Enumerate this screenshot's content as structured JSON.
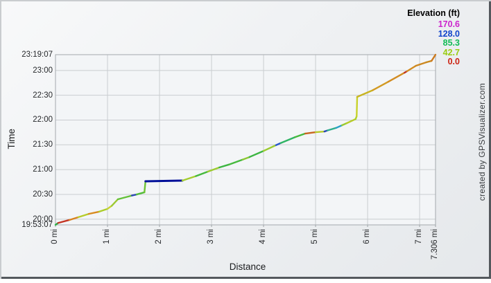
{
  "credit": "created by GPSVisualizer.com",
  "chart_data": {
    "type": "line",
    "xlabel": "Distance",
    "ylabel": "Time",
    "x_unit": "mi",
    "xlim_mi": [
      0,
      7.306
    ],
    "time_start": "19:53:07",
    "time_end": "23:19:07",
    "duration_min": 206,
    "grid": true,
    "x_ticks": [
      {
        "label": "0 mi",
        "mi": 0
      },
      {
        "label": "1 mi",
        "mi": 1
      },
      {
        "label": "2 mi",
        "mi": 2
      },
      {
        "label": "3 mi",
        "mi": 3
      },
      {
        "label": "4 mi",
        "mi": 4
      },
      {
        "label": "5 mi",
        "mi": 5
      },
      {
        "label": "6 mi",
        "mi": 6
      },
      {
        "label": "7 mi",
        "mi": 7
      },
      {
        "label": "7.306 mi",
        "mi": 7.306
      }
    ],
    "y_ticks": [
      {
        "label": "19:53:07",
        "min": 0
      },
      {
        "label": "20:00",
        "min": 6.883
      },
      {
        "label": "20:30",
        "min": 36.883
      },
      {
        "label": "21:00",
        "min": 66.883
      },
      {
        "label": "21:30",
        "min": 96.883
      },
      {
        "label": "22:00",
        "min": 126.883
      },
      {
        "label": "22:30",
        "min": 156.883
      },
      {
        "label": "23:00",
        "min": 186.883
      },
      {
        "label": "23:19:07",
        "min": 206
      }
    ],
    "legend": {
      "title": "Elevation (ft)",
      "entries": [
        {
          "label": "170.6",
          "color": "#cc22cc"
        },
        {
          "label": "128.0",
          "color": "#1144cc"
        },
        {
          "label": "85.3",
          "color": "#11bb55"
        },
        {
          "label": "42.7",
          "color": "#99cc11"
        },
        {
          "label": "0.0",
          "color": "#cc2211"
        }
      ]
    },
    "track_points": [
      [
        0.0,
        0.0,
        "#2fae46"
      ],
      [
        0.05,
        2.3,
        "#c43524"
      ],
      [
        0.27,
        6.0,
        "#d8821f"
      ],
      [
        0.44,
        9.3,
        "#b6cc2a"
      ],
      [
        0.64,
        13.3,
        "#d88a1f"
      ],
      [
        0.84,
        16.0,
        "#accd2a"
      ],
      [
        1.0,
        19.4,
        "#c6d234"
      ],
      [
        1.08,
        23.0,
        "#9cc932"
      ],
      [
        1.2,
        31.0,
        "#64c13a"
      ],
      [
        1.47,
        35.5,
        "#2b46b4"
      ],
      [
        1.56,
        36.8,
        "#52bc3a"
      ],
      [
        1.71,
        39.4,
        "#6cc332"
      ],
      [
        1.73,
        52.8,
        "#000f99"
      ],
      [
        2.44,
        53.6,
        "#a4cd2e"
      ],
      [
        2.7,
        59.0,
        "#46b93e"
      ],
      [
        2.93,
        64.5,
        "#9ccb30"
      ],
      [
        3.15,
        69.5,
        "#3cb542"
      ],
      [
        3.33,
        72.9,
        "#46b93e"
      ],
      [
        3.6,
        79.0,
        "#8cc734"
      ],
      [
        3.73,
        82.1,
        "#3cb542"
      ],
      [
        4.0,
        89.5,
        "#9ccb30"
      ],
      [
        4.24,
        96.5,
        "#2a58cc"
      ],
      [
        4.33,
        99.0,
        "#30b464"
      ],
      [
        4.6,
        106.0,
        "#46b93e"
      ],
      [
        4.8,
        110.5,
        "#c8641e"
      ],
      [
        5.0,
        112.2,
        "#b6cc2a"
      ],
      [
        5.17,
        113.0,
        "#2b46b4"
      ],
      [
        5.23,
        114.3,
        "#2fae8c"
      ],
      [
        5.4,
        117.5,
        "#29a0c8"
      ],
      [
        5.51,
        120.6,
        "#98ca30"
      ],
      [
        5.6,
        123.1,
        "#b6cc2a"
      ],
      [
        5.77,
        128.1,
        "#aed22a"
      ],
      [
        5.79,
        131.5,
        "#c8d22a"
      ],
      [
        5.8,
        154.9,
        "#c8b422"
      ],
      [
        6.1,
        163.0,
        "#d29a22"
      ],
      [
        6.4,
        173.3,
        "#d28c22"
      ],
      [
        6.71,
        184.2,
        "#c03222"
      ],
      [
        6.76,
        186.0,
        "#d28c22"
      ],
      [
        6.93,
        192.6,
        "#cc8822"
      ],
      [
        7.13,
        196.8,
        "#c8881e"
      ],
      [
        7.23,
        198.5,
        "#cc7a1e"
      ],
      [
        7.306,
        206.0,
        null
      ]
    ]
  }
}
